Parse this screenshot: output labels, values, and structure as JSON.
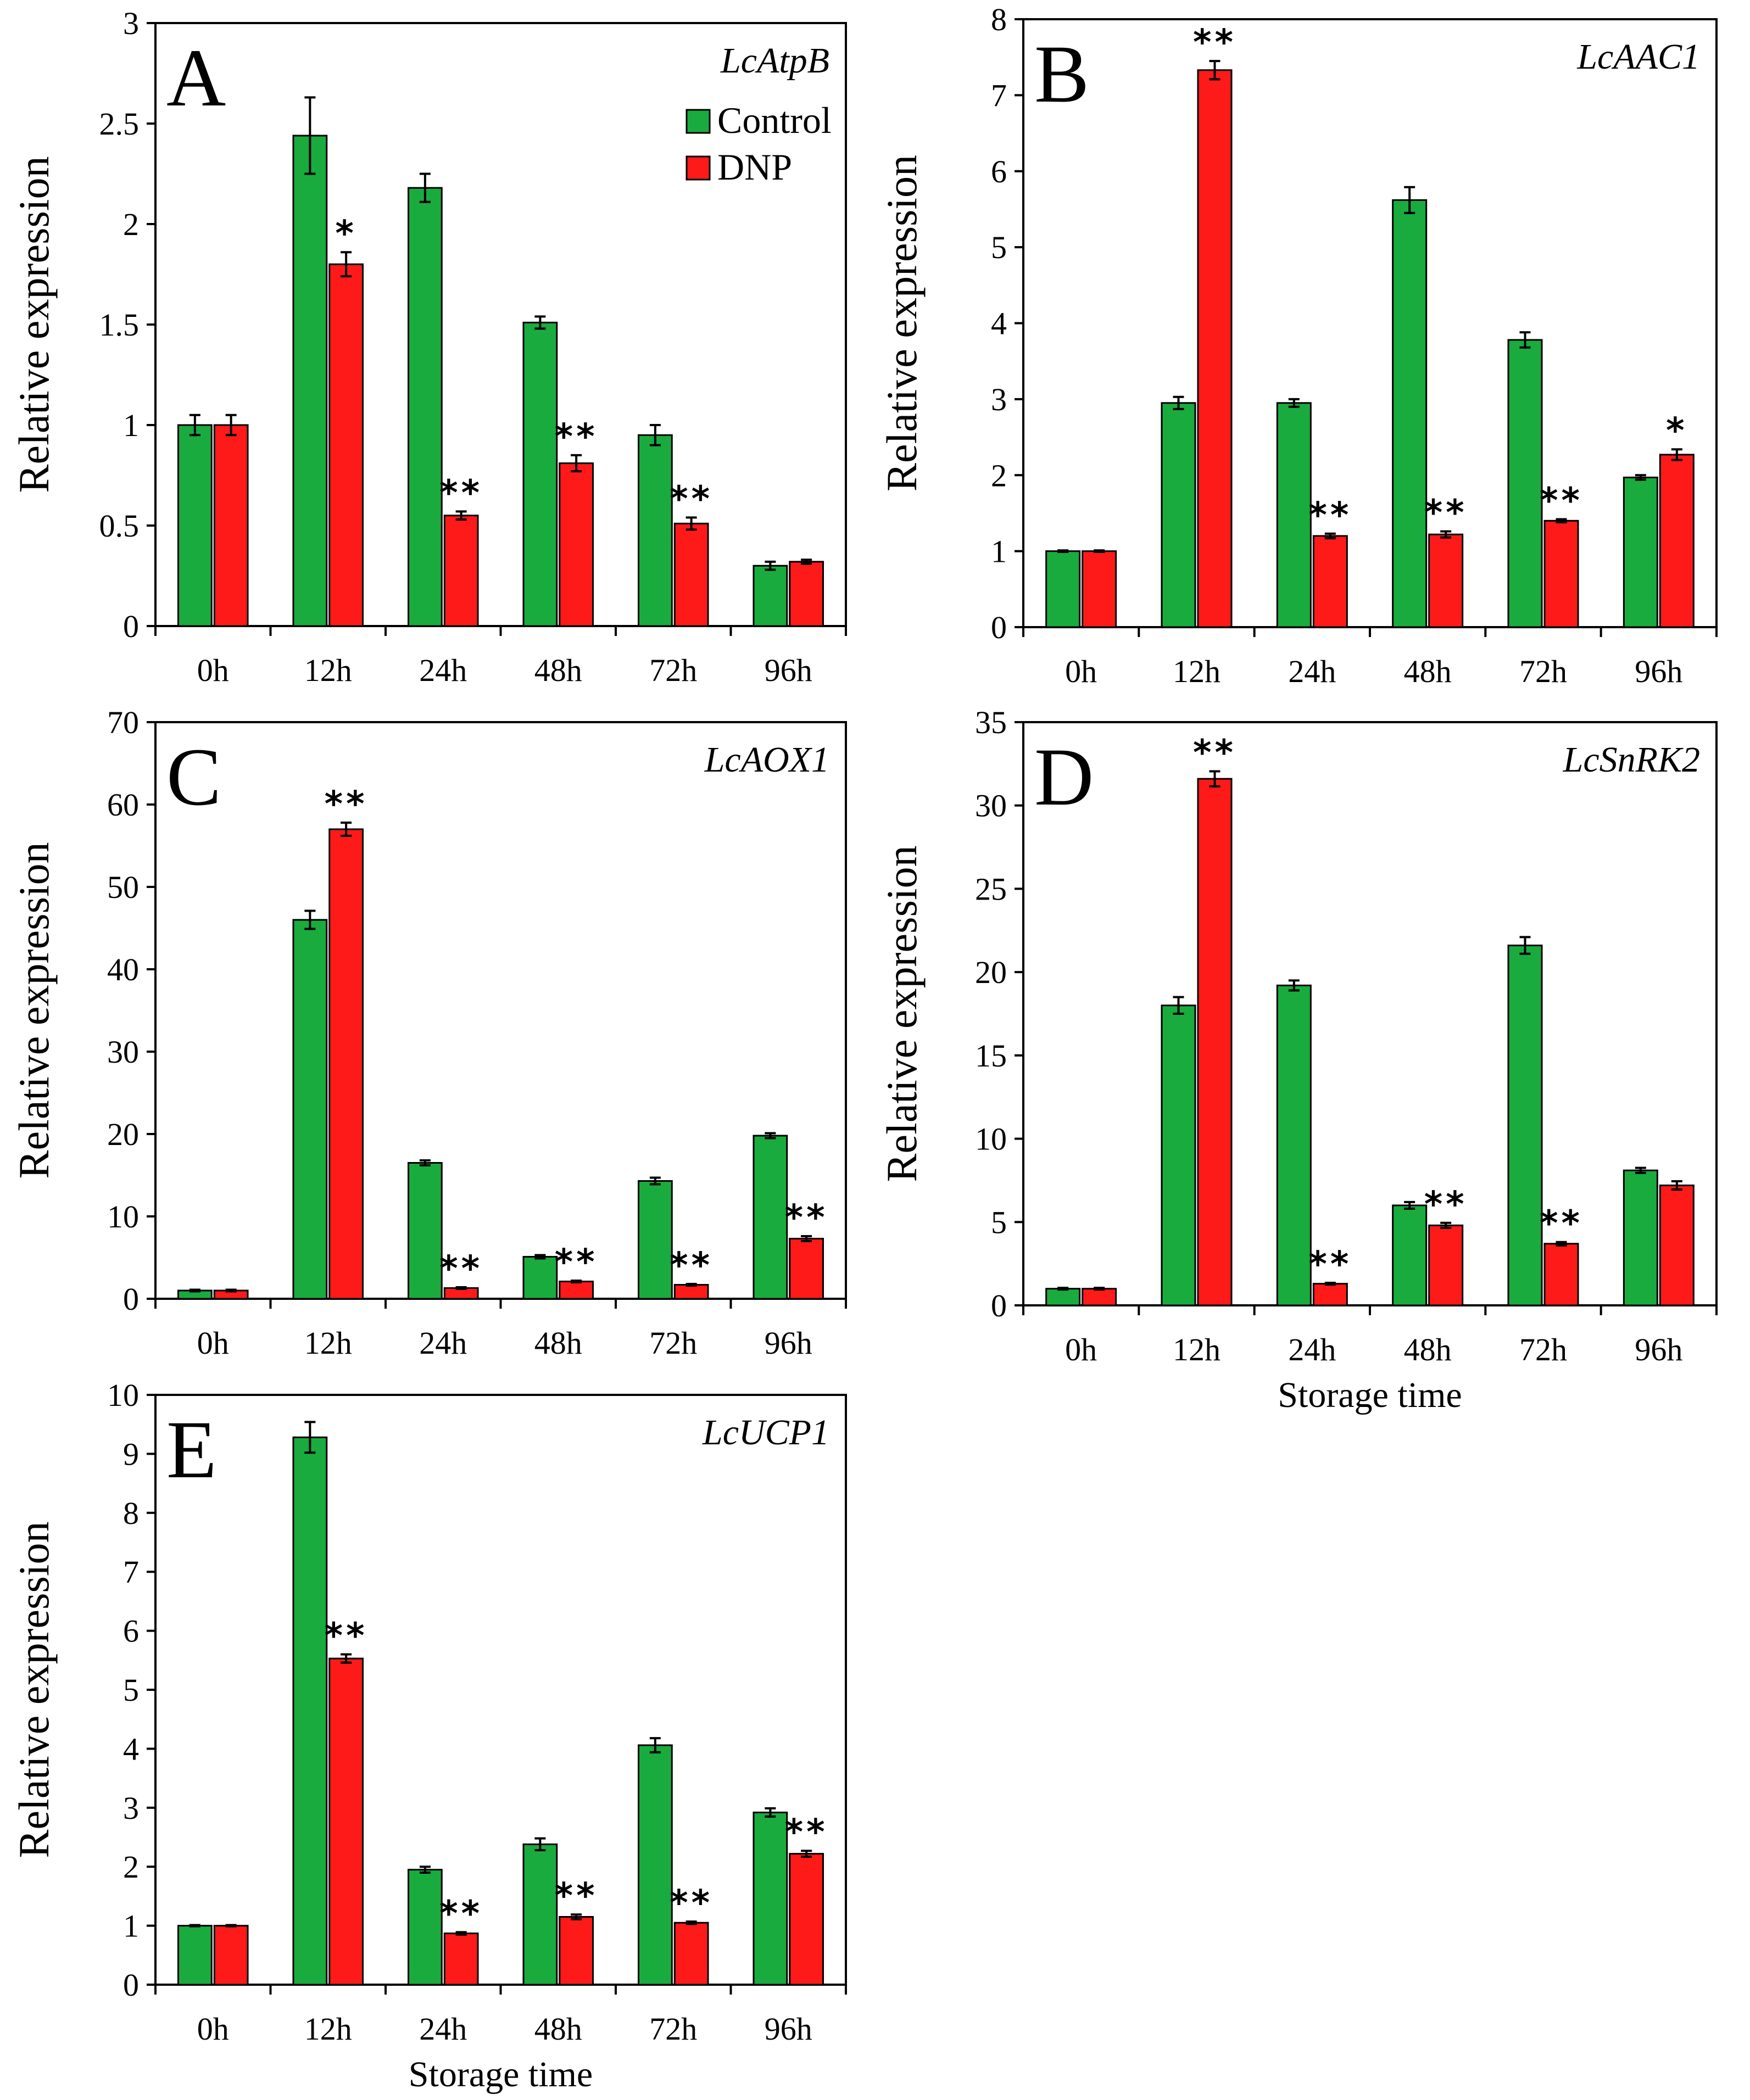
{
  "legend": {
    "series": [
      {
        "name": "Control",
        "color": "#1aab3f"
      },
      {
        "name": "DNP",
        "color": "#ff1a1a"
      }
    ]
  },
  "chart_data": [
    {
      "type": "bar",
      "panel": "A",
      "gene": "LcAtpB",
      "title": "",
      "xlabel": "",
      "ylabel": "Relative expression",
      "ylim": [
        0,
        3
      ],
      "yticks": [
        "0",
        "0.5",
        "1",
        "1.5",
        "2",
        "2.5",
        "3"
      ],
      "categories": [
        "0h",
        "12h",
        "24h",
        "48h",
        "72h",
        "96h"
      ],
      "legend_position": "top-right",
      "series": [
        {
          "name": "Control",
          "values": [
            1.0,
            2.44,
            2.18,
            1.51,
            0.95,
            0.3
          ],
          "errors": [
            0.05,
            0.19,
            0.07,
            0.03,
            0.05,
            0.02
          ],
          "significance": [
            "",
            "",
            "",
            "",
            "",
            ""
          ]
        },
        {
          "name": "DNP",
          "values": [
            1.0,
            1.8,
            0.55,
            0.81,
            0.51,
            0.32
          ],
          "errors": [
            0.05,
            0.06,
            0.02,
            0.04,
            0.03,
            0.01
          ],
          "significance": [
            "",
            "*",
            "**",
            "**",
            "**",
            ""
          ]
        }
      ]
    },
    {
      "type": "bar",
      "panel": "B",
      "gene": "LcAAC1",
      "title": "",
      "xlabel": "",
      "ylabel": "Relative expression",
      "ylim": [
        0,
        8
      ],
      "yticks": [
        "0",
        "1",
        "2",
        "3",
        "4",
        "5",
        "6",
        "7",
        "8"
      ],
      "categories": [
        "0h",
        "12h",
        "24h",
        "48h",
        "72h",
        "96h"
      ],
      "series": [
        {
          "name": "Control",
          "values": [
            1.0,
            2.95,
            2.95,
            5.62,
            3.78,
            1.97
          ],
          "errors": [
            0.01,
            0.08,
            0.05,
            0.17,
            0.1,
            0.03
          ],
          "significance": [
            "",
            "",
            "",
            "",
            "",
            ""
          ]
        },
        {
          "name": "DNP",
          "values": [
            1.0,
            7.33,
            1.2,
            1.22,
            1.4,
            2.27
          ],
          "errors": [
            0.01,
            0.12,
            0.03,
            0.04,
            0.02,
            0.07
          ],
          "significance": [
            "",
            "**",
            "**",
            "**",
            "**",
            "*"
          ]
        }
      ]
    },
    {
      "type": "bar",
      "panel": "C",
      "gene": "LcAOX1",
      "title": "",
      "xlabel": "",
      "ylabel": "Relative expression",
      "ylim": [
        0,
        70
      ],
      "yticks": [
        "0",
        "10",
        "20",
        "30",
        "40",
        "50",
        "60",
        "70"
      ],
      "categories": [
        "0h",
        "12h",
        "24h",
        "48h",
        "72h",
        "96h"
      ],
      "series": [
        {
          "name": "Control",
          "values": [
            1.0,
            46.0,
            16.5,
            5.1,
            14.3,
            19.8
          ],
          "errors": [
            0.1,
            1.1,
            0.3,
            0.2,
            0.4,
            0.3
          ],
          "significance": [
            "",
            "",
            "",
            "",
            "",
            ""
          ]
        },
        {
          "name": "DNP",
          "values": [
            1.0,
            57.0,
            1.3,
            2.1,
            1.7,
            7.3
          ],
          "errors": [
            0.1,
            0.8,
            0.1,
            0.1,
            0.1,
            0.3
          ],
          "significance": [
            "",
            "**",
            "**",
            "**",
            "**",
            "**"
          ]
        }
      ]
    },
    {
      "type": "bar",
      "panel": "D",
      "gene": "LcSnRK2",
      "title": "",
      "xlabel": "Storage time",
      "ylabel": "Relative expression",
      "ylim": [
        0,
        35
      ],
      "yticks": [
        "0",
        "5",
        "10",
        "15",
        "20",
        "25",
        "30",
        "35"
      ],
      "categories": [
        "0h",
        "12h",
        "24h",
        "48h",
        "72h",
        "96h"
      ],
      "series": [
        {
          "name": "Control",
          "values": [
            1.0,
            18.0,
            19.2,
            6.0,
            21.6,
            8.1
          ],
          "errors": [
            0.05,
            0.5,
            0.3,
            0.2,
            0.5,
            0.15
          ],
          "significance": [
            "",
            "",
            "",
            "",
            "",
            ""
          ]
        },
        {
          "name": "DNP",
          "values": [
            1.0,
            31.6,
            1.3,
            4.8,
            3.7,
            7.2
          ],
          "errors": [
            0.05,
            0.45,
            0.05,
            0.15,
            0.1,
            0.25
          ],
          "significance": [
            "",
            "**",
            "**",
            "**",
            "**",
            ""
          ]
        }
      ]
    },
    {
      "type": "bar",
      "panel": "E",
      "gene": "LcUCP1",
      "title": "",
      "xlabel": "Storage time",
      "ylabel": "Relative expression",
      "ylim": [
        0,
        10
      ],
      "yticks": [
        "0",
        "1",
        "2",
        "3",
        "4",
        "5",
        "6",
        "7",
        "8",
        "9",
        "10"
      ],
      "categories": [
        "0h",
        "12h",
        "24h",
        "48h",
        "72h",
        "96h"
      ],
      "series": [
        {
          "name": "Control",
          "values": [
            1.0,
            9.28,
            1.95,
            2.38,
            4.06,
            2.92
          ],
          "errors": [
            0.01,
            0.26,
            0.05,
            0.1,
            0.12,
            0.07
          ],
          "significance": [
            "",
            "",
            "",
            "",
            "",
            ""
          ]
        },
        {
          "name": "DNP",
          "values": [
            1.0,
            5.53,
            0.87,
            1.15,
            1.05,
            2.22
          ],
          "errors": [
            0.01,
            0.07,
            0.02,
            0.04,
            0.02,
            0.05
          ],
          "significance": [
            "",
            "**",
            "**",
            "**",
            "**",
            "**"
          ]
        }
      ]
    }
  ]
}
